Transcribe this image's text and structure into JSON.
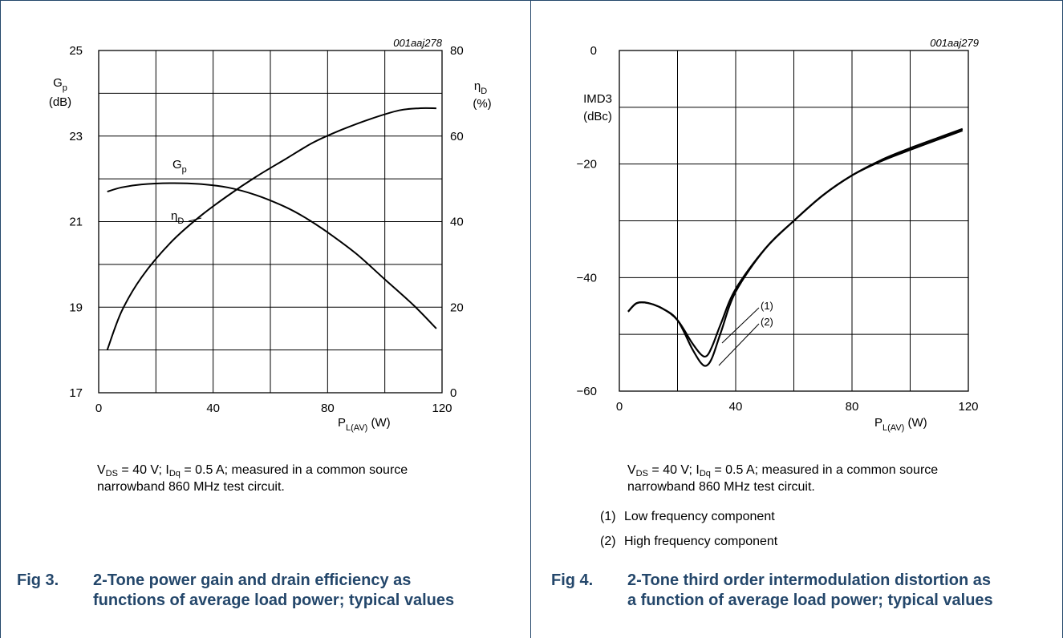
{
  "charts": [
    {
      "code": "001aaj278",
      "x_axis": {
        "ticks": [
          "0",
          "40",
          "80",
          "120"
        ],
        "label_main": "P",
        "label_sub": "L(AV)",
        "label_unit": " (W)"
      },
      "y_left": {
        "ticks": [
          "17",
          "19",
          "21",
          "23",
          "25"
        ],
        "label_main": "G",
        "label_sub": "p",
        "label_unit": "(dB)"
      },
      "y_right": {
        "ticks": [
          "0",
          "20",
          "40",
          "60",
          "80"
        ],
        "label_main": "η",
        "label_sub": "D",
        "label_unit": "(%)"
      },
      "curve_labels": [
        {
          "main": "G",
          "sub": "p"
        },
        {
          "main": "η",
          "sub": "D"
        }
      ],
      "note": {
        "v": "V",
        "v_sub": "DS",
        "v_rest": " = 40 V; I",
        "i_sub": "Dq",
        "i_rest": " = 0.5 A; measured in a common source",
        "line2": "narrowband 860 MHz test circuit."
      },
      "caption": {
        "num": "Fig 3.",
        "title": "2-Tone power gain and drain efficiency as functions of average load power; typical values"
      }
    },
    {
      "code": "001aaj279",
      "x_axis": {
        "ticks": [
          "0",
          "40",
          "80",
          "120"
        ],
        "label_main": "P",
        "label_sub": "L(AV)",
        "label_unit": " (W)"
      },
      "y_left": {
        "ticks": [
          "−60",
          "−40",
          "−20",
          "0"
        ],
        "label_main": "IMD3",
        "label_unit": "(dBc)"
      },
      "curve_labels": [
        "(1)",
        "(2)"
      ],
      "note": {
        "v": "V",
        "v_sub": "DS",
        "v_rest": " = 40 V; I",
        "i_sub": "Dq",
        "i_rest": " = 0.5 A; measured in a common source",
        "line2": "narrowband 860 MHz test circuit."
      },
      "legend": [
        {
          "num": "(1)",
          "text": "Low frequency component"
        },
        {
          "num": "(2)",
          "text": "High frequency component"
        }
      ],
      "caption": {
        "num": "Fig 4.",
        "title": "2-Tone third order intermodulation distortion as a function of average load power; typical values"
      }
    }
  ],
  "chart_data": [
    {
      "type": "line",
      "xlabel": "PL(AV) (W)",
      "ylabel": "Gp (dB)",
      "y2label": "ηD (%)",
      "xlim": [
        0,
        120
      ],
      "ylim": [
        17,
        25
      ],
      "y2lim": [
        0,
        80
      ],
      "grid": true,
      "series": [
        {
          "name": "Gp",
          "axis": "left",
          "x": [
            3,
            8,
            15,
            25,
            35,
            45,
            55,
            65,
            72,
            80,
            90,
            100,
            110,
            118
          ],
          "y": [
            21.7,
            21.8,
            21.87,
            21.9,
            21.88,
            21.8,
            21.62,
            21.35,
            21.1,
            20.75,
            20.25,
            19.65,
            19.05,
            18.5
          ]
        },
        {
          "name": "ηD",
          "axis": "right",
          "x": [
            3,
            8,
            15,
            25,
            35,
            45,
            55,
            65,
            75,
            85,
            95,
            105,
            112,
            118
          ],
          "y": [
            10,
            19,
            27,
            35,
            41,
            46,
            50.5,
            54.5,
            58.5,
            61.5,
            64,
            66,
            66.5,
            66.5
          ]
        }
      ]
    },
    {
      "type": "line",
      "xlabel": "PL(AV) (W)",
      "ylabel": "IMD3 (dBc)",
      "xlim": [
        0,
        120
      ],
      "ylim": [
        -60,
        0
      ],
      "grid": true,
      "series": [
        {
          "name": "(1)",
          "x": [
            3,
            6,
            10,
            15,
            20,
            25,
            28,
            30,
            32,
            35,
            40,
            50,
            60,
            70,
            80,
            90,
            100,
            110,
            118
          ],
          "y": [
            -46,
            -44.5,
            -44.5,
            -45.5,
            -47.5,
            -51.5,
            -53.5,
            -53.8,
            -52,
            -48,
            -42,
            -35,
            -30,
            -25.5,
            -22,
            -19.3,
            -17.2,
            -15.3,
            -13.8
          ]
        },
        {
          "name": "(2)",
          "x": [
            3,
            6,
            10,
            15,
            20,
            25,
            28,
            30,
            32,
            35,
            40,
            50,
            60,
            70,
            80,
            90,
            100,
            110,
            118
          ],
          "y": [
            -46,
            -44.5,
            -44.5,
            -45.5,
            -47.5,
            -52.5,
            -55,
            -55.5,
            -54,
            -49.5,
            -42.5,
            -35,
            -30,
            -25.5,
            -22,
            -19.5,
            -17.5,
            -15.6,
            -14.1
          ]
        }
      ]
    }
  ]
}
